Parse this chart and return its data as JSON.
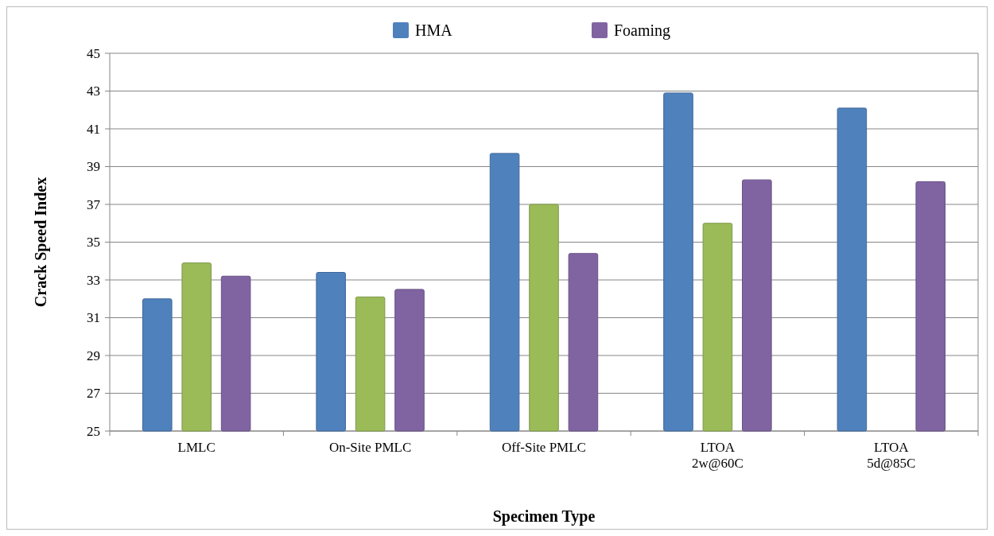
{
  "chart_data": {
    "type": "bar",
    "xlabel": "Specimen Type",
    "ylabel": "Crack Speed Index",
    "categories": [
      "LMLC",
      "On-Site PMLC",
      "Off-Site PMLC",
      "LTOA\n2w@60C",
      "LTOA\n5d@85C"
    ],
    "series": [
      {
        "name": "HMA",
        "color": "#4f81bd",
        "values": [
          32.0,
          33.4,
          39.7,
          42.9,
          42.1
        ]
      },
      {
        "color": "#9bbb59",
        "values": [
          33.9,
          32.1,
          37.0,
          36.0,
          null
        ]
      },
      {
        "name": "Foaming",
        "color": "#8064a2",
        "values": [
          33.2,
          32.5,
          34.4,
          38.3,
          38.2
        ]
      }
    ],
    "ylim": [
      25,
      45
    ],
    "yticks": [
      25,
      27,
      29,
      31,
      33,
      35,
      37,
      39,
      41,
      43,
      45
    ],
    "grid": "y",
    "legend": "top"
  }
}
